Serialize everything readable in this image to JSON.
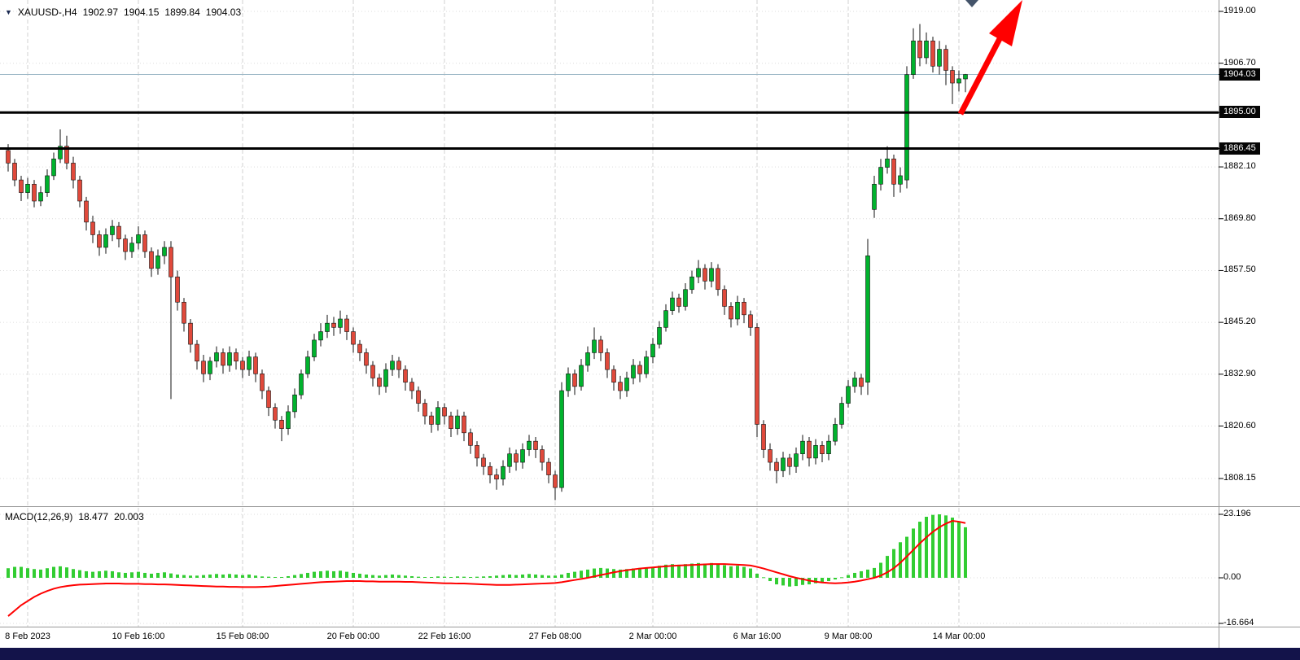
{
  "symbol_info": {
    "symbol": "XAUUSD-,H4",
    "open": "1902.97",
    "high": "1904.15",
    "low": "1899.84",
    "close": "1904.03",
    "dropdown_icon": "▼"
  },
  "macd_info": {
    "label": "MACD(12,26,9)",
    "value": "18.477",
    "signal_value": "20.003"
  },
  "colors": {
    "up": "#00b22d",
    "down": "#e0493b",
    "wick": "#111111",
    "macd_bar": "#32cd32",
    "signal": "#ff0000",
    "hline": "#000000",
    "grid": "#dcdcdc",
    "vgrid": "#d2d2d2",
    "separator": "#9a9a9a",
    "price_line": "#9db8c6",
    "label_bg": "#050505",
    "label_fg": "#ffffff",
    "arrow": "#ff0000",
    "shift_marker": "#44546a",
    "bottom_bar": "#13134a"
  },
  "chart_data": {
    "type": "candlestick",
    "symbol": "XAUUSD-",
    "timeframe": "H4",
    "price_axis_ticks": [
      "1919.00",
      "1906.70",
      "1882.10",
      "1869.80",
      "1857.50",
      "1845.20",
      "1832.90",
      "1820.60",
      "1808.15"
    ],
    "levels": [
      {
        "label": "1904.03",
        "price": 1904.03,
        "style": "current"
      },
      {
        "label": "1895.00",
        "price": 1895.0,
        "style": "hline"
      },
      {
        "label": "1886.45",
        "price": 1886.45,
        "style": "hline"
      }
    ],
    "time_ticks": [
      {
        "index": 3,
        "label": "8 Feb 2023"
      },
      {
        "index": 20,
        "label": "10 Feb 16:00"
      },
      {
        "index": 36,
        "label": "15 Feb 08:00"
      },
      {
        "index": 53,
        "label": "20 Feb 00:00"
      },
      {
        "index": 67,
        "label": "22 Feb 16:00"
      },
      {
        "index": 84,
        "label": "27 Feb 08:00"
      },
      {
        "index": 99,
        "label": "2 Mar 00:00"
      },
      {
        "index": 115,
        "label": "6 Mar 16:00"
      },
      {
        "index": 129,
        "label": "9 Mar 08:00"
      },
      {
        "index": 146,
        "label": "14 Mar 00:00"
      }
    ],
    "candles": [
      [
        1886,
        1887.5,
        1881,
        1883
      ],
      [
        1883,
        1884,
        1877.5,
        1879
      ],
      [
        1879,
        1880,
        1874,
        1876
      ],
      [
        1876,
        1879.5,
        1874.5,
        1878
      ],
      [
        1878,
        1879,
        1872.5,
        1874
      ],
      [
        1874,
        1877.5,
        1872.8,
        1876
      ],
      [
        1876,
        1881.5,
        1875,
        1880
      ],
      [
        1880,
        1885.5,
        1879,
        1884
      ],
      [
        1884,
        1891,
        1883,
        1887
      ],
      [
        1887,
        1889.5,
        1881.5,
        1883
      ],
      [
        1883,
        1884.5,
        1877,
        1879
      ],
      [
        1879,
        1880,
        1872.5,
        1874
      ],
      [
        1874,
        1875,
        1867,
        1869
      ],
      [
        1869,
        1870.5,
        1864,
        1866
      ],
      [
        1866,
        1867,
        1861,
        1863
      ],
      [
        1863,
        1867.5,
        1861.5,
        1866
      ],
      [
        1866,
        1869.5,
        1864.5,
        1868
      ],
      [
        1868,
        1869,
        1863,
        1865
      ],
      [
        1865,
        1866,
        1860,
        1862
      ],
      [
        1862,
        1865.5,
        1860.5,
        1864
      ],
      [
        1864,
        1868,
        1862.5,
        1866
      ],
      [
        1866,
        1867,
        1860.5,
        1862
      ],
      [
        1862,
        1863,
        1856,
        1858
      ],
      [
        1858,
        1862.5,
        1856.5,
        1861
      ],
      [
        1861,
        1864.5,
        1859,
        1863
      ],
      [
        1863,
        1864.5,
        1827,
        1856
      ],
      [
        1856,
        1857.5,
        1848,
        1850
      ],
      [
        1850,
        1851,
        1843,
        1845
      ],
      [
        1845,
        1846,
        1838,
        1840
      ],
      [
        1840,
        1841,
        1834,
        1836
      ],
      [
        1836,
        1837.5,
        1831,
        1833
      ],
      [
        1833,
        1837,
        1831.5,
        1836
      ],
      [
        1836,
        1839.5,
        1834.5,
        1838
      ],
      [
        1838,
        1839,
        1833,
        1835
      ],
      [
        1835,
        1839.5,
        1833.5,
        1838
      ],
      [
        1838,
        1839,
        1834,
        1836
      ],
      [
        1836,
        1837,
        1832,
        1834
      ],
      [
        1834,
        1838.5,
        1832.5,
        1837
      ],
      [
        1837,
        1838,
        1831,
        1833
      ],
      [
        1833,
        1834,
        1827,
        1829
      ],
      [
        1829,
        1830,
        1823,
        1825
      ],
      [
        1825,
        1826,
        1820,
        1822
      ],
      [
        1822,
        1823,
        1817,
        1820
      ],
      [
        1820,
        1825.5,
        1818.5,
        1824
      ],
      [
        1824,
        1829.5,
        1822.5,
        1828
      ],
      [
        1828,
        1834,
        1827,
        1833
      ],
      [
        1833,
        1838.5,
        1832,
        1837
      ],
      [
        1837,
        1842.5,
        1836,
        1841
      ],
      [
        1841,
        1845,
        1839.5,
        1843
      ],
      [
        1843,
        1847,
        1841.5,
        1845
      ],
      [
        1845,
        1846.5,
        1842,
        1844
      ],
      [
        1844,
        1848,
        1842.5,
        1846
      ],
      [
        1846,
        1847,
        1841,
        1843
      ],
      [
        1843,
        1844,
        1838,
        1840
      ],
      [
        1840,
        1841,
        1836,
        1838
      ],
      [
        1838,
        1839,
        1833,
        1835
      ],
      [
        1835,
        1836,
        1830,
        1832
      ],
      [
        1832,
        1833,
        1828,
        1830
      ],
      [
        1830,
        1835.5,
        1828.5,
        1834
      ],
      [
        1834,
        1837.5,
        1832.5,
        1836
      ],
      [
        1836,
        1837,
        1832,
        1834
      ],
      [
        1834,
        1835,
        1829,
        1831
      ],
      [
        1831,
        1832,
        1827,
        1829
      ],
      [
        1829,
        1830,
        1824,
        1826
      ],
      [
        1826,
        1827,
        1821,
        1823
      ],
      [
        1823,
        1824,
        1819,
        1821
      ],
      [
        1821,
        1826.5,
        1819.5,
        1825
      ],
      [
        1825,
        1826,
        1821,
        1823
      ],
      [
        1823,
        1824,
        1818,
        1820
      ],
      [
        1820,
        1824.5,
        1818.5,
        1823
      ],
      [
        1823,
        1824,
        1817,
        1819
      ],
      [
        1819,
        1820,
        1814,
        1816
      ],
      [
        1816,
        1817,
        1811,
        1813
      ],
      [
        1813,
        1814,
        1809,
        1811
      ],
      [
        1811,
        1812,
        1807,
        1809
      ],
      [
        1809,
        1810.5,
        1805.5,
        1808
      ],
      [
        1808,
        1812.5,
        1806.5,
        1811
      ],
      [
        1811,
        1815.5,
        1809.5,
        1814
      ],
      [
        1814,
        1815,
        1810,
        1812
      ],
      [
        1812,
        1816.5,
        1810.5,
        1815
      ],
      [
        1815,
        1818.5,
        1813.5,
        1817
      ],
      [
        1817,
        1818,
        1813,
        1815
      ],
      [
        1815,
        1816,
        1810,
        1812
      ],
      [
        1812,
        1813,
        1807,
        1809
      ],
      [
        1809,
        1810,
        1803,
        1806
      ],
      [
        1806,
        1831,
        1805,
        1829
      ],
      [
        1829,
        1834.5,
        1827.5,
        1833
      ],
      [
        1833,
        1834,
        1828,
        1830
      ],
      [
        1830,
        1836.5,
        1829,
        1835
      ],
      [
        1835,
        1839.5,
        1833.5,
        1838
      ],
      [
        1838,
        1844,
        1836.5,
        1841
      ],
      [
        1841,
        1842,
        1836,
        1838
      ],
      [
        1838,
        1839,
        1832,
        1834
      ],
      [
        1834,
        1835,
        1829,
        1831
      ],
      [
        1831,
        1832.5,
        1827,
        1829
      ],
      [
        1829,
        1833.5,
        1827.5,
        1832
      ],
      [
        1832,
        1836.5,
        1830.5,
        1835
      ],
      [
        1835,
        1836,
        1831,
        1833
      ],
      [
        1833,
        1838.5,
        1832,
        1837
      ],
      [
        1837,
        1841.5,
        1835.5,
        1840
      ],
      [
        1840,
        1845.5,
        1839,
        1844
      ],
      [
        1844,
        1849.5,
        1843,
        1848
      ],
      [
        1848,
        1852.5,
        1847,
        1851
      ],
      [
        1851,
        1852,
        1847.5,
        1849
      ],
      [
        1849,
        1854.5,
        1848,
        1853
      ],
      [
        1853,
        1857.5,
        1852,
        1856
      ],
      [
        1856,
        1860,
        1854.5,
        1858
      ],
      [
        1858,
        1859,
        1853,
        1855
      ],
      [
        1855,
        1859.5,
        1853.5,
        1858
      ],
      [
        1858,
        1859,
        1851.5,
        1853
      ],
      [
        1853,
        1854,
        1847,
        1849
      ],
      [
        1849,
        1850,
        1844,
        1846
      ],
      [
        1846,
        1851.5,
        1844.5,
        1850
      ],
      [
        1850,
        1851,
        1845,
        1847
      ],
      [
        1847,
        1848,
        1842,
        1844
      ],
      [
        1844,
        1845,
        1818,
        1821
      ],
      [
        1821,
        1822,
        1813,
        1815
      ],
      [
        1815,
        1816.5,
        1810,
        1812
      ],
      [
        1812,
        1813,
        1807,
        1810
      ],
      [
        1810,
        1814.5,
        1808.5,
        1813
      ],
      [
        1813,
        1814,
        1809,
        1811
      ],
      [
        1811,
        1815.5,
        1809.5,
        1814
      ],
      [
        1814,
        1818.5,
        1812.5,
        1817
      ],
      [
        1817,
        1818,
        1811,
        1813
      ],
      [
        1813,
        1817.5,
        1811.5,
        1816
      ],
      [
        1816,
        1817,
        1812,
        1814
      ],
      [
        1814,
        1818.5,
        1812.5,
        1817
      ],
      [
        1817,
        1822.5,
        1816,
        1821
      ],
      [
        1821,
        1827.5,
        1820,
        1826
      ],
      [
        1826,
        1831.5,
        1825,
        1830
      ],
      [
        1830,
        1833.5,
        1828.5,
        1832
      ],
      [
        1832,
        1833,
        1828,
        1830
      ],
      [
        1831,
        1865,
        1828,
        1861
      ],
      [
        1872,
        1880,
        1870,
        1878
      ],
      [
        1878,
        1884,
        1876.5,
        1882
      ],
      [
        1882,
        1887,
        1880.5,
        1884
      ],
      [
        1884,
        1885,
        1875,
        1878
      ],
      [
        1878,
        1882,
        1876,
        1880
      ],
      [
        1879,
        1906,
        1877,
        1904
      ],
      [
        1904,
        1915,
        1903,
        1912
      ],
      [
        1912,
        1916,
        1906,
        1908
      ],
      [
        1908,
        1914,
        1906.5,
        1912
      ],
      [
        1912,
        1913,
        1904.5,
        1906
      ],
      [
        1906,
        1912,
        1904,
        1910
      ],
      [
        1910,
        1911,
        1901.5,
        1905
      ],
      [
        1905,
        1906,
        1897,
        1902
      ],
      [
        1902,
        1905,
        1900,
        1903
      ],
      [
        1902.97,
        1904.15,
        1899.84,
        1904.03
      ]
    ],
    "macd": {
      "label": "MACD(12,26,9)",
      "current": 18.477,
      "signal_current": 20.003,
      "axis_ticks": [
        "23.196",
        "0.00",
        "-16.664"
      ],
      "values": [
        3.5,
        4.0,
        4.0,
        3.5,
        3.2,
        3.0,
        3.5,
        4.0,
        4.2,
        3.8,
        3.2,
        2.8,
        2.4,
        2.2,
        2.4,
        2.6,
        2.4,
        2.0,
        1.8,
        2.0,
        2.2,
        1.8,
        1.5,
        1.8,
        2.0,
        1.6,
        1.2,
        1.0,
        0.8,
        0.8,
        1.0,
        1.2,
        1.4,
        1.2,
        1.4,
        1.2,
        1.0,
        1.2,
        0.8,
        0.5,
        0.4,
        0.3,
        0.3,
        0.6,
        1.0,
        1.4,
        1.8,
        2.2,
        2.4,
        2.6,
        2.4,
        2.6,
        2.2,
        1.8,
        1.5,
        1.2,
        1.0,
        0.8,
        1.0,
        1.2,
        1.0,
        0.8,
        0.6,
        0.4,
        0.3,
        0.3,
        0.5,
        0.4,
        0.3,
        0.5,
        0.4,
        0.3,
        0.4,
        0.5,
        0.6,
        0.8,
        1.0,
        1.2,
        1.0,
        1.2,
        1.4,
        1.2,
        1.0,
        0.8,
        0.8,
        1.2,
        1.8,
        2.2,
        2.6,
        3.0,
        3.4,
        3.6,
        3.4,
        3.2,
        3.0,
        3.2,
        3.4,
        3.6,
        3.8,
        4.0,
        4.4,
        4.8,
        5.0,
        4.8,
        5.0,
        5.2,
        5.4,
        5.2,
        5.4,
        5.0,
        4.6,
        4.2,
        4.4,
        4.0,
        3.4,
        1.5,
        0.2,
        -1.2,
        -2.4,
        -2.8,
        -3.2,
        -3.0,
        -2.6,
        -2.4,
        -2.0,
        -1.6,
        -1.2,
        -0.6,
        0.2,
        1.0,
        1.8,
        2.4,
        3.0,
        3.6,
        5.5,
        8.0,
        10.5,
        13.0,
        15.0,
        18.0,
        20.5,
        22.3,
        23.0,
        23.196,
        22.8,
        22.0,
        20.5,
        18.477
      ],
      "signal": [
        -14.0,
        -12.0,
        -10.0,
        -8.5,
        -7.0,
        -5.8,
        -4.8,
        -4.0,
        -3.4,
        -3.0,
        -2.7,
        -2.5,
        -2.4,
        -2.3,
        -2.2,
        -2.1,
        -2.1,
        -2.1,
        -2.2,
        -2.2,
        -2.2,
        -2.3,
        -2.3,
        -2.4,
        -2.4,
        -2.5,
        -2.6,
        -2.7,
        -2.8,
        -2.9,
        -3.0,
        -3.1,
        -3.2,
        -3.2,
        -3.3,
        -3.3,
        -3.4,
        -3.4,
        -3.4,
        -3.3,
        -3.2,
        -3.0,
        -2.8,
        -2.6,
        -2.4,
        -2.2,
        -2.0,
        -1.8,
        -1.6,
        -1.5,
        -1.4,
        -1.3,
        -1.2,
        -1.2,
        -1.2,
        -1.3,
        -1.3,
        -1.4,
        -1.4,
        -1.4,
        -1.4,
        -1.5,
        -1.5,
        -1.6,
        -1.7,
        -1.8,
        -1.9,
        -2.0,
        -2.0,
        -2.1,
        -2.1,
        -2.2,
        -2.3,
        -2.4,
        -2.5,
        -2.6,
        -2.6,
        -2.6,
        -2.5,
        -2.4,
        -2.3,
        -2.2,
        -2.1,
        -2.0,
        -1.9,
        -1.6,
        -1.2,
        -0.8,
        -0.4,
        0.0,
        0.5,
        1.0,
        1.5,
        2.0,
        2.4,
        2.8,
        3.1,
        3.4,
        3.6,
        3.8,
        4.0,
        4.2,
        4.4,
        4.5,
        4.6,
        4.7,
        4.8,
        4.9,
        5.0,
        5.0,
        5.0,
        4.9,
        4.8,
        4.7,
        4.5,
        4.0,
        3.4,
        2.7,
        2.0,
        1.3,
        0.6,
        0.0,
        -0.5,
        -1.0,
        -1.4,
        -1.7,
        -1.9,
        -2.0,
        -1.9,
        -1.7,
        -1.4,
        -1.0,
        -0.5,
        0.0,
        0.8,
        2.0,
        3.5,
        5.5,
        7.8,
        10.2,
        12.6,
        14.8,
        16.8,
        18.5,
        19.8,
        20.8,
        20.5,
        20.003
      ]
    },
    "annotations": [
      {
        "type": "arrow",
        "direction": "up-right",
        "color": "#ff0000"
      },
      {
        "type": "chart-shift-marker",
        "position": "top"
      }
    ]
  }
}
